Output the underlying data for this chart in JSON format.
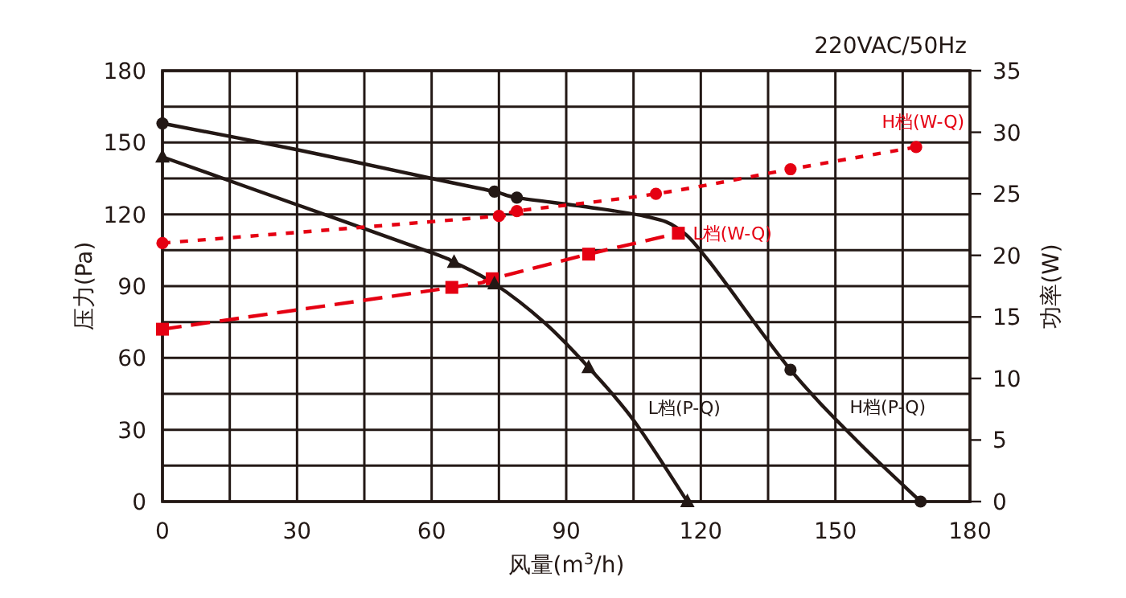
{
  "chart_data": {
    "type": "line",
    "title": "220VAC/50Hz",
    "xlabel": "风量(m$^{3}$/h)",
    "ylabel": "压力(Pa)",
    "y2label": "功率(W)",
    "xlim": [
      0,
      180
    ],
    "xticks": [
      0,
      {
        "value": 15,
        "label": null
      },
      30,
      {
        "value": 45,
        "label": null
      },
      60,
      {
        "value": 75,
        "label": null
      },
      90,
      {
        "value": 105,
        "label": null
      },
      120,
      {
        "value": 135,
        "label": null
      },
      150,
      {
        "value": 165,
        "label": null
      },
      180
    ],
    "ylim": [
      0,
      180
    ],
    "yticks": [
      0,
      {
        "value": 15,
        "label": null
      },
      30,
      {
        "value": 45,
        "label": null
      },
      60,
      {
        "value": 75,
        "label": null
      },
      90,
      {
        "value": 105,
        "label": null
      },
      120,
      {
        "value": 135,
        "label": null
      },
      150,
      {
        "value": 165,
        "label": null
      },
      180
    ],
    "y2lim": [
      0,
      35
    ],
    "y2ticks": [
      0,
      5,
      10,
      15,
      20,
      25,
      30,
      35
    ],
    "grid": true,
    "series": [
      {
        "name": "H档(P-Q)",
        "type": "line",
        "color": "#231815",
        "line_style": "solid",
        "marker": "none",
        "x": [
          0,
          30,
          60,
          74,
          79,
          95,
          108,
          115,
          122,
          140,
          155,
          169
        ],
        "values": [
          158,
          147,
          135,
          129.5,
          127,
          123,
          119,
          114,
          100,
          55,
          25,
          0
        ]
      },
      {
        "type": "scatter",
        "color": "#231815",
        "marker": "circle",
        "x": [
          0,
          74,
          79,
          140,
          169
        ],
        "values": [
          158,
          129.5,
          127,
          55,
          0
        ]
      },
      {
        "name": "L档(P-Q)",
        "type": "line",
        "color": "#231815",
        "line_style": "solid",
        "marker": "none",
        "x": [
          0,
          30,
          60,
          65,
          74,
          85,
          95,
          105,
          117
        ],
        "values": [
          144,
          124,
          104,
          100,
          91,
          75,
          56,
          34,
          0
        ]
      },
      {
        "type": "scatter",
        "color": "#231815",
        "marker": "triangle",
        "x": [
          0,
          65,
          74,
          95,
          117
        ],
        "values": [
          144,
          100,
          91,
          56,
          0
        ]
      },
      {
        "name": "H档(W-Q)",
        "type": "line",
        "axis": "y2",
        "color": "#e50012",
        "line_style": "dotted",
        "marker": "circle",
        "x": [
          0,
          75,
          79,
          110,
          140,
          168
        ],
        "values": [
          21,
          23.2,
          23.6,
          25,
          27,
          28.8
        ]
      },
      {
        "name": "L档(W-Q)",
        "type": "line",
        "axis": "y2",
        "color": "#e50012",
        "line_style": "dashed",
        "marker": "square",
        "x": [
          0,
          64.5,
          73.5,
          95,
          115
        ],
        "values": [
          14,
          17.4,
          18.1,
          20.1,
          21.8
        ]
      }
    ]
  }
}
